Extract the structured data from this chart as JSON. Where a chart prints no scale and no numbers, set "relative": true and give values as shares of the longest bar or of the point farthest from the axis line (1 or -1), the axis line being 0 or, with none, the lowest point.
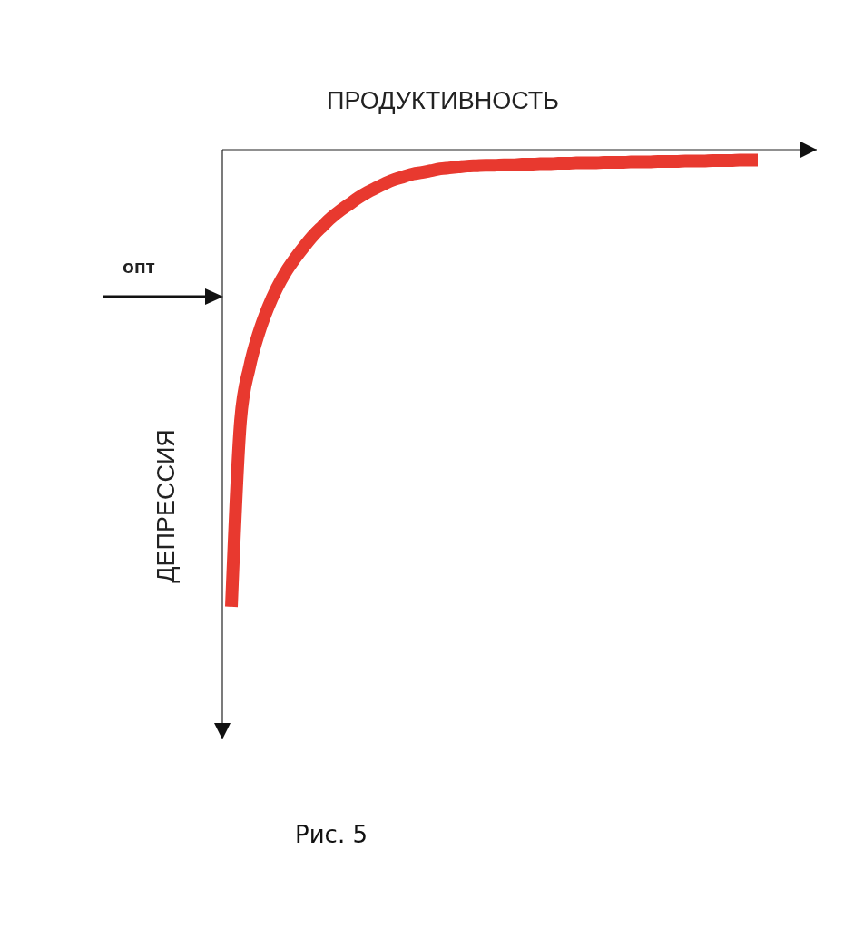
{
  "chart_data": {
    "type": "line",
    "relative": true,
    "xlabel": "ПРОДУКТИВНОСТЬ",
    "ylabel": "ДЕПРЕССИЯ",
    "annotations": [
      "опт",
      "Рис. 5"
    ],
    "categories": [
      null,
      null,
      null,
      null,
      null,
      null,
      null,
      null,
      null,
      null,
      null,
      null,
      null,
      null,
      null,
      null,
      null,
      null,
      null,
      null,
      null,
      null,
      null,
      null,
      null,
      null,
      null,
      null,
      null,
      null,
      null,
      null,
      null,
      null,
      null,
      null,
      null,
      null,
      null,
      null,
      null,
      null,
      null,
      null,
      null,
      null,
      null,
      null,
      null,
      null,
      null,
      null,
      null,
      null,
      null,
      null,
      null,
      null,
      null
    ],
    "series": [
      {
        "color": "#e8392f",
        "values": [
          -1,
          -0.594,
          -0.475,
          -0.402,
          -0.347,
          -0.303,
          -0.267,
          -0.238,
          -0.212,
          -0.188,
          -0.168,
          -0.149,
          -0.133,
          -0.119,
          -0.105,
          -0.093,
          -0.083,
          -0.073,
          -0.065,
          -0.059,
          -0.053,
          -0.05,
          -0.046,
          -0.042,
          -0.04,
          -0.038,
          -0.036,
          -0.035,
          -0.034,
          -0.034,
          -0.033,
          -0.033,
          -0.032,
          -0.032,
          -0.031,
          -0.031,
          -0.03,
          -0.03,
          -0.029,
          -0.029,
          -0.029,
          -0.028,
          -0.028,
          -0.028,
          -0.027,
          -0.027,
          -0.027,
          -0.026,
          -0.026,
          -0.026,
          -0.025,
          -0.025,
          -0.025,
          -0.024,
          -0.024,
          -0.024,
          -0.023,
          -0.023,
          -0.023
        ]
      }
    ]
  }
}
